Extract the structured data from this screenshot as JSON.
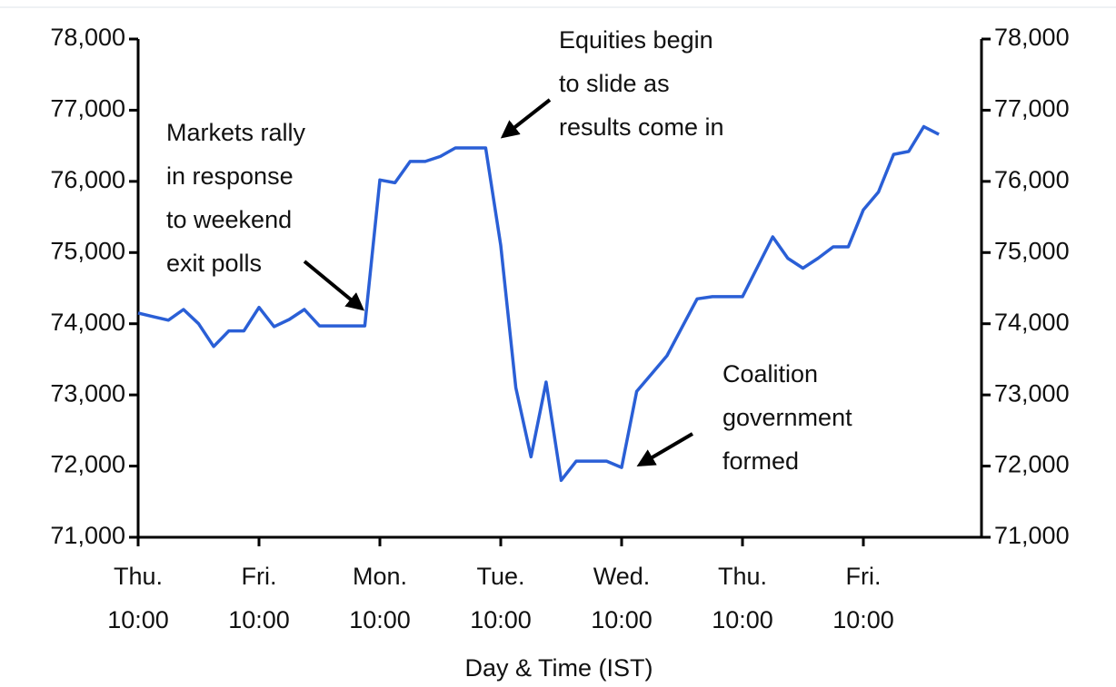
{
  "chart_data": {
    "type": "line",
    "xlabel": "Day & Time (IST)",
    "categories": [
      "Thu. 10:00",
      null,
      null,
      null,
      null,
      null,
      null,
      null,
      "Fri. 10:00",
      null,
      null,
      null,
      null,
      null,
      null,
      null,
      "Mon. 10:00",
      null,
      null,
      null,
      null,
      null,
      null,
      null,
      "Tue. 10:00",
      null,
      null,
      null,
      null,
      null,
      null,
      null,
      "Wed. 10:00",
      null,
      null,
      null,
      null,
      null,
      null,
      null,
      "Thu. 10:00",
      null,
      null,
      null,
      null,
      null,
      null,
      null,
      "Fri. 10:00",
      null,
      null,
      null,
      null,
      null
    ],
    "series": [
      {
        "color": "#2a5fd6",
        "values": [
          74150,
          74100,
          74050,
          74200,
          74000,
          73680,
          73900,
          73900,
          74230,
          73960,
          74060,
          74200,
          73970,
          73970,
          73970,
          73970,
          76020,
          75980,
          76280,
          76280,
          76350,
          76470,
          76470,
          76470,
          75100,
          73100,
          72130,
          73180,
          71800,
          72070,
          72070,
          72070,
          71980,
          73050,
          73300,
          73550,
          73950,
          74350,
          74380,
          74380,
          74380,
          74800,
          75220,
          74920,
          74780,
          74920,
          75080,
          75080,
          75600,
          75850,
          76380,
          76420,
          76770,
          76660
        ]
      }
    ],
    "ylim": [
      71000,
      78000
    ],
    "yticks": [
      {
        "value": 71000,
        "label": "71,000"
      },
      {
        "value": 72000,
        "label": "72,000"
      },
      {
        "value": 73000,
        "label": "73,000"
      },
      {
        "value": 74000,
        "label": "74,000"
      },
      {
        "value": 75000,
        "label": "75,000"
      },
      {
        "value": 76000,
        "label": "76,000"
      },
      {
        "value": 77000,
        "label": "77,000"
      },
      {
        "value": 78000,
        "label": "78,000"
      }
    ],
    "y2lim": [
      71000,
      78000
    ],
    "y2ticks": [
      {
        "value": 71000,
        "label": "71,000"
      },
      {
        "value": 72000,
        "label": "72,000"
      },
      {
        "value": 73000,
        "label": "73,000"
      },
      {
        "value": 74000,
        "label": "74,000"
      },
      {
        "value": 75000,
        "label": "75,000"
      },
      {
        "value": 76000,
        "label": "76,000"
      },
      {
        "value": 77000,
        "label": "77,000"
      },
      {
        "value": 78000,
        "label": "78,000"
      }
    ],
    "annotations": [
      {
        "lines": [
          "Markets rally",
          "in response",
          "to weekend",
          "exit polls"
        ]
      },
      {
        "lines": [
          "Equities begin",
          "to slide as",
          "results come in"
        ]
      },
      {
        "lines": [
          "Coalition",
          "government",
          "formed"
        ]
      }
    ]
  }
}
